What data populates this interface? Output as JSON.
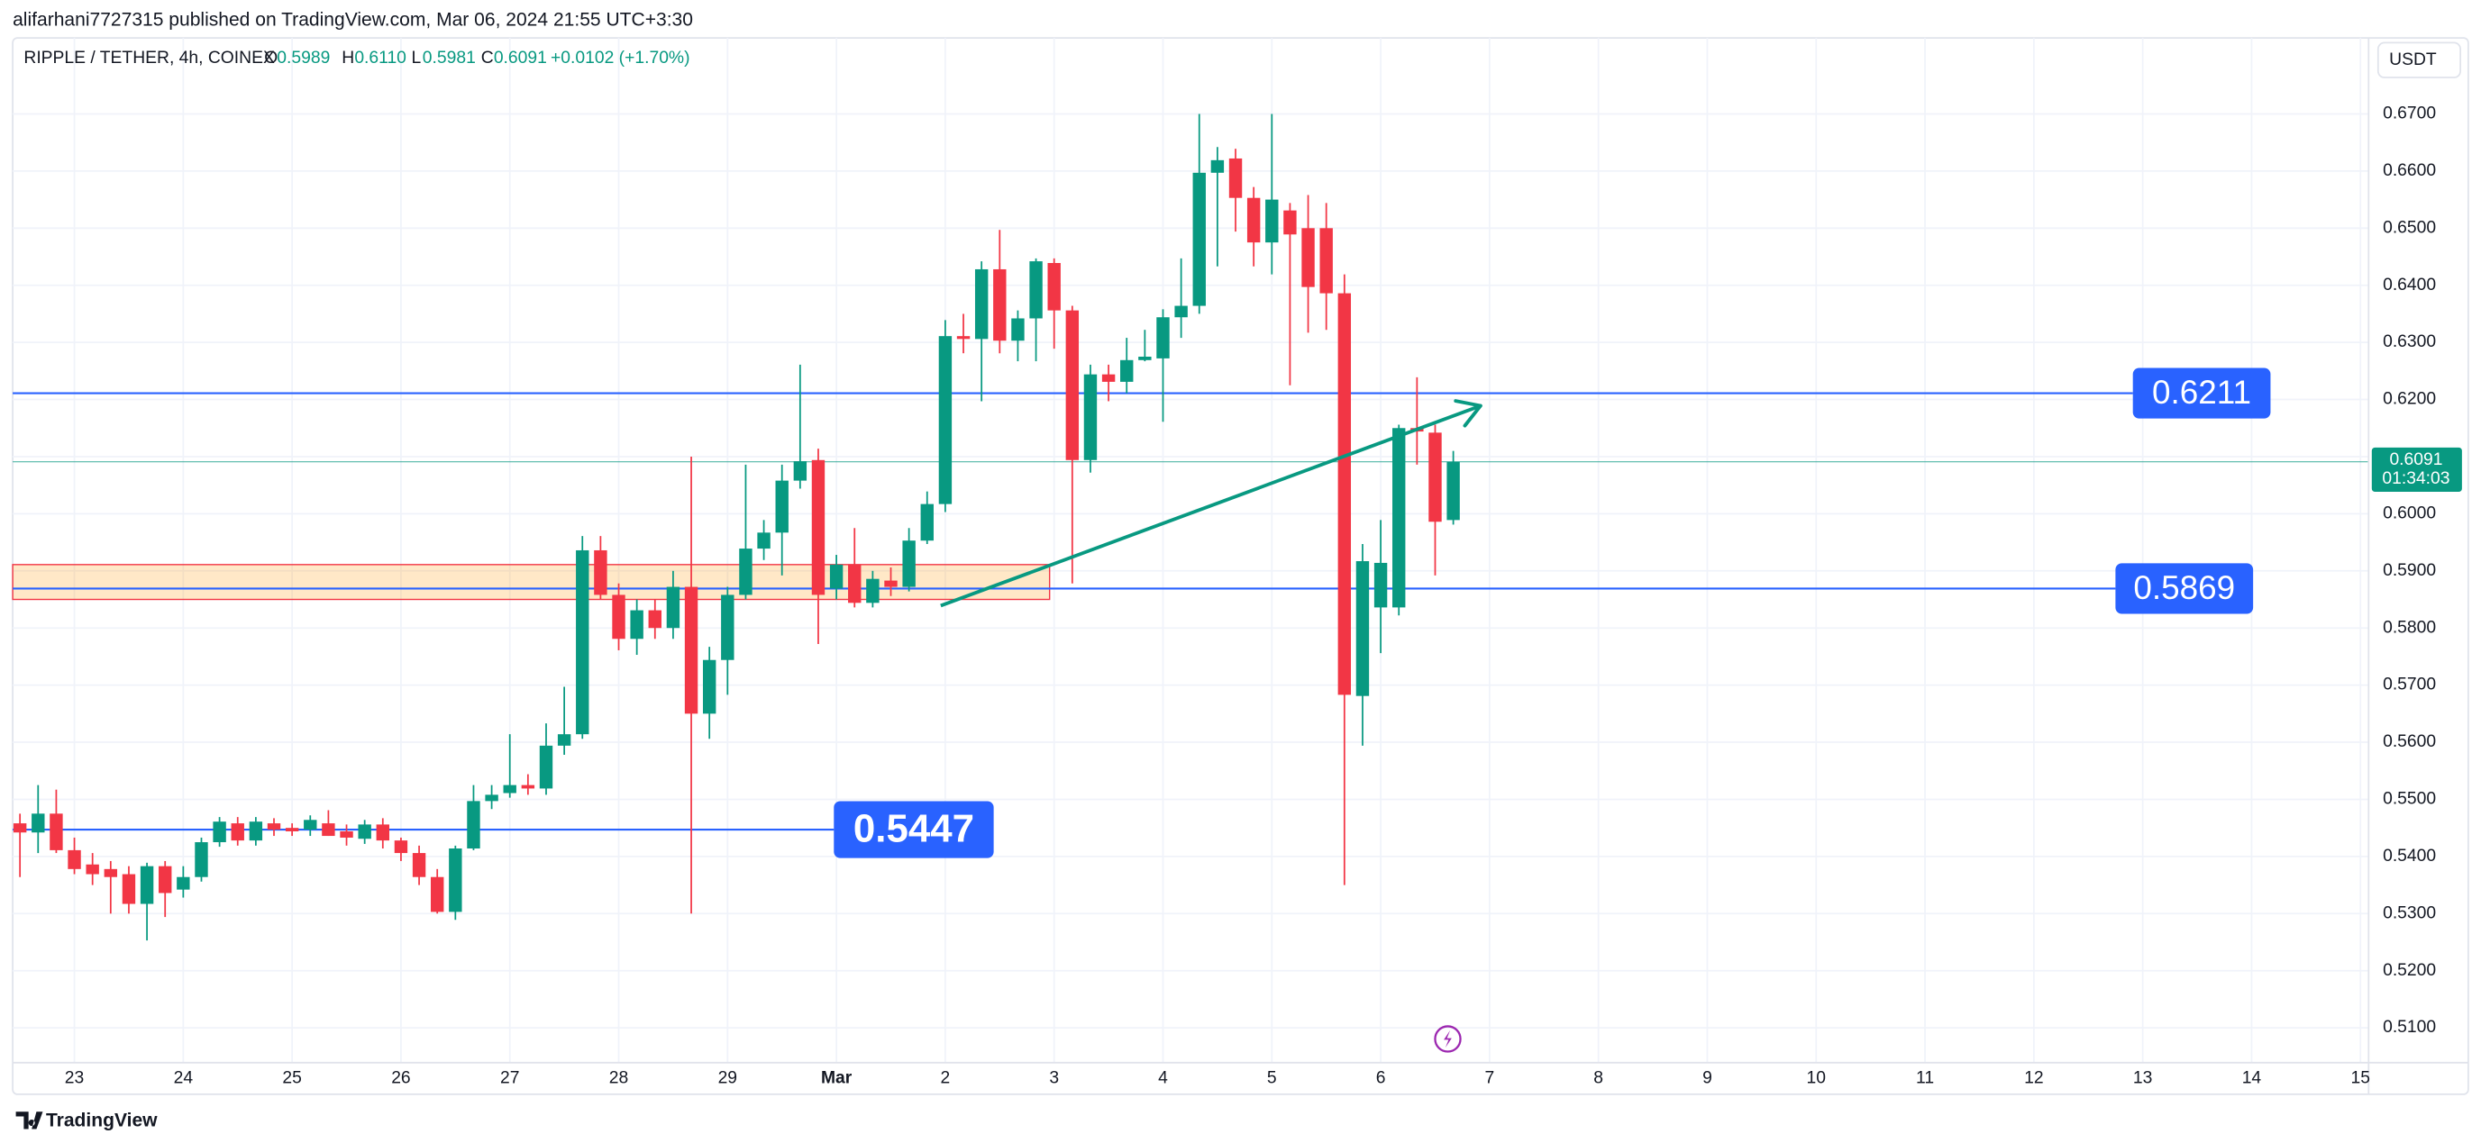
{
  "chart_data": {
    "type": "candlestick",
    "published": "alifarhani7727315 published on TradingView.com, Mar 06, 2024 21:55 UTC+3:30",
    "title": "RIPPLE / TETHER, 4h, COINEX",
    "ohlc": [
      {
        "label": "O",
        "value": "0.5989"
      },
      {
        "label": "H",
        "value": "0.6110"
      },
      {
        "label": "L",
        "value": "0.5981"
      },
      {
        "label": "C",
        "value": "0.6091"
      }
    ],
    "change": "+0.0102 (+1.70%)",
    "currency": "USDT",
    "brand": "TradingView",
    "up_color": "#089981",
    "down_color": "#f23645",
    "level_color": "#2962ff",
    "xlim": [
      -13.6,
      505.8
    ],
    "xticks": [
      {
        "value": 0,
        "label": "23"
      },
      {
        "value": 24,
        "label": "24"
      },
      {
        "value": 48,
        "label": "25"
      },
      {
        "value": 72,
        "label": "26"
      },
      {
        "value": 96,
        "label": "27"
      },
      {
        "value": 120,
        "label": "28"
      },
      {
        "value": 144,
        "label": "29"
      },
      {
        "value": 168,
        "label": "Mar"
      },
      {
        "value": 192,
        "label": "2"
      },
      {
        "value": 216,
        "label": "3"
      },
      {
        "value": 240,
        "label": "4"
      },
      {
        "value": 264,
        "label": "5"
      },
      {
        "value": 288,
        "label": "6"
      },
      {
        "value": 312,
        "label": "7"
      },
      {
        "value": 336,
        "label": "8"
      },
      {
        "value": 360,
        "label": "9"
      },
      {
        "value": 384,
        "label": "10"
      },
      {
        "value": 408,
        "label": "11"
      },
      {
        "value": 432,
        "label": "12"
      },
      {
        "value": 456,
        "label": "13"
      },
      {
        "value": 480,
        "label": "14"
      },
      {
        "value": 504,
        "label": "15"
      }
    ],
    "ylim": [
      0.5039,
      0.6833
    ],
    "yticks": [
      {
        "value": 0.51,
        "label": "0.5100"
      },
      {
        "value": 0.52,
        "label": "0.5200"
      },
      {
        "value": 0.53,
        "label": "0.5300"
      },
      {
        "value": 0.54,
        "label": "0.5400"
      },
      {
        "value": 0.55,
        "label": "0.5500"
      },
      {
        "value": 0.56,
        "label": "0.5600"
      },
      {
        "value": 0.57,
        "label": "0.5700"
      },
      {
        "value": 0.58,
        "label": "0.5800"
      },
      {
        "value": 0.59,
        "label": "0.5900"
      },
      {
        "value": 0.6,
        "label": "0.6000"
      },
      {
        "value": 0.61,
        "label": "0.6100"
      },
      {
        "value": 0.62,
        "label": "0.6200"
      },
      {
        "value": 0.63,
        "label": "0.6300"
      },
      {
        "value": 0.64,
        "label": "0.6400"
      },
      {
        "value": 0.65,
        "label": "0.6500"
      },
      {
        "value": 0.66,
        "label": "0.6600"
      },
      {
        "value": 0.67,
        "label": "0.6700"
      }
    ],
    "grid": true,
    "x": [
      -12,
      -8,
      -4,
      0,
      4,
      8,
      12,
      16,
      20,
      24,
      28,
      32,
      36,
      40,
      44,
      48,
      52,
      56,
      60,
      64,
      68,
      72,
      76,
      80,
      84,
      88,
      92,
      96,
      100,
      104,
      108,
      112,
      116,
      120,
      124,
      128,
      132,
      136,
      140,
      144,
      148,
      152,
      156,
      160,
      164,
      168,
      172,
      176,
      180,
      184,
      188,
      192,
      196,
      200,
      204,
      208,
      212,
      216,
      220,
      224,
      228,
      232,
      236,
      240,
      244,
      248,
      252,
      256,
      260,
      264,
      268,
      272,
      276,
      280,
      284,
      288,
      292,
      296,
      300,
      304
    ],
    "open": [
      0.5458,
      0.5442,
      0.5475,
      0.5411,
      0.5386,
      0.5378,
      0.5369,
      0.5317,
      0.5383,
      0.5342,
      0.5364,
      0.5425,
      0.5458,
      0.5428,
      0.5458,
      0.545,
      0.5447,
      0.5458,
      0.5444,
      0.5431,
      0.5456,
      0.5428,
      0.5406,
      0.5364,
      0.5303,
      0.5414,
      0.5497,
      0.5511,
      0.5525,
      0.5519,
      0.5594,
      0.5614,
      0.5936,
      0.5858,
      0.5781,
      0.5831,
      0.58,
      0.5872,
      0.565,
      0.5744,
      0.5858,
      0.5939,
      0.5967,
      0.6058,
      0.6094,
      0.5869,
      0.5911,
      0.5844,
      0.5883,
      0.5872,
      0.5953,
      0.6017,
      0.6311,
      0.6306,
      0.6428,
      0.6303,
      0.6342,
      0.6439,
      0.6356,
      0.6094,
      0.6244,
      0.6231,
      0.6269,
      0.6272,
      0.6344,
      0.6364,
      0.6597,
      0.6622,
      0.6553,
      0.6475,
      0.6531,
      0.65,
      0.65,
      0.6386,
      0.5681,
      0.5836,
      0.5836,
      0.615,
      0.6142,
      0.5989
    ],
    "high": [
      0.5475,
      0.5525,
      0.5517,
      0.5433,
      0.5406,
      0.5392,
      0.5383,
      0.5389,
      0.5392,
      0.5383,
      0.5433,
      0.5469,
      0.5469,
      0.5469,
      0.5467,
      0.5458,
      0.5472,
      0.5481,
      0.5456,
      0.5464,
      0.5467,
      0.5433,
      0.5419,
      0.5378,
      0.5419,
      0.5525,
      0.5525,
      0.5614,
      0.5544,
      0.5633,
      0.5697,
      0.5961,
      0.5961,
      0.5878,
      0.585,
      0.585,
      0.59,
      0.61,
      0.5767,
      0.5872,
      0.6086,
      0.5989,
      0.6086,
      0.6261,
      0.6114,
      0.5928,
      0.5975,
      0.59,
      0.5906,
      0.5975,
      0.6039,
      0.6339,
      0.635,
      0.6442,
      0.6497,
      0.6356,
      0.6447,
      0.6447,
      0.6364,
      0.6261,
      0.6261,
      0.6308,
      0.6322,
      0.6358,
      0.6447,
      0.67,
      0.6642,
      0.6639,
      0.6572,
      0.67,
      0.6544,
      0.6558,
      0.6544,
      0.6419,
      0.5947,
      0.5989,
      0.6156,
      0.6239,
      0.6156,
      0.611
    ],
    "low": [
      0.5364,
      0.5406,
      0.5406,
      0.5369,
      0.535,
      0.53,
      0.53,
      0.5253,
      0.5294,
      0.5328,
      0.5356,
      0.5417,
      0.5419,
      0.5419,
      0.5436,
      0.5436,
      0.5436,
      0.5436,
      0.5419,
      0.5422,
      0.5414,
      0.5392,
      0.535,
      0.53,
      0.5289,
      0.5411,
      0.5483,
      0.5503,
      0.5508,
      0.5508,
      0.5578,
      0.5606,
      0.585,
      0.5761,
      0.5753,
      0.5781,
      0.5781,
      0.53,
      0.5606,
      0.5683,
      0.585,
      0.5919,
      0.5892,
      0.6044,
      0.5772,
      0.585,
      0.5836,
      0.5836,
      0.5856,
      0.5864,
      0.5947,
      0.6003,
      0.6281,
      0.6197,
      0.6281,
      0.6267,
      0.6267,
      0.6289,
      0.5878,
      0.6072,
      0.6197,
      0.6211,
      0.6267,
      0.6161,
      0.6308,
      0.635,
      0.6433,
      0.6494,
      0.6433,
      0.6419,
      0.6225,
      0.6317,
      0.6322,
      0.535,
      0.5594,
      0.5756,
      0.5822,
      0.6086,
      0.5892,
      0.5981
    ],
    "close": [
      0.5442,
      0.5475,
      0.5411,
      0.5378,
      0.5369,
      0.5364,
      0.5317,
      0.5383,
      0.5336,
      0.5364,
      0.5425,
      0.5461,
      0.5428,
      0.5461,
      0.5447,
      0.5444,
      0.5464,
      0.5436,
      0.5433,
      0.5456,
      0.5428,
      0.5406,
      0.5364,
      0.5303,
      0.5414,
      0.5497,
      0.5508,
      0.5525,
      0.5519,
      0.5594,
      0.5614,
      0.5936,
      0.5858,
      0.5781,
      0.5831,
      0.58,
      0.5872,
      0.565,
      0.5744,
      0.5858,
      0.5939,
      0.5967,
      0.6058,
      0.6092,
      0.5858,
      0.5911,
      0.5844,
      0.5886,
      0.5872,
      0.5953,
      0.6017,
      0.6311,
      0.6306,
      0.6428,
      0.6303,
      0.6342,
      0.6442,
      0.6356,
      0.6094,
      0.6244,
      0.6231,
      0.6269,
      0.6275,
      0.6344,
      0.6364,
      0.6597,
      0.6619,
      0.6553,
      0.6475,
      0.655,
      0.6489,
      0.6397,
      0.6386,
      0.5683,
      0.5917,
      0.5914,
      0.615,
      0.6144,
      0.5986,
      0.6091
    ],
    "levels": [
      0.6211,
      0.5869,
      0.5447
    ],
    "last_price": 0.6091,
    "countdown": "01:34:03",
    "zone": {
      "x": [
        -13.6,
        215
      ],
      "y": [
        0.585,
        0.5911
      ]
    },
    "arrow": {
      "x": [
        191,
        310
      ],
      "y": [
        0.5839,
        0.6189
      ]
    }
  }
}
